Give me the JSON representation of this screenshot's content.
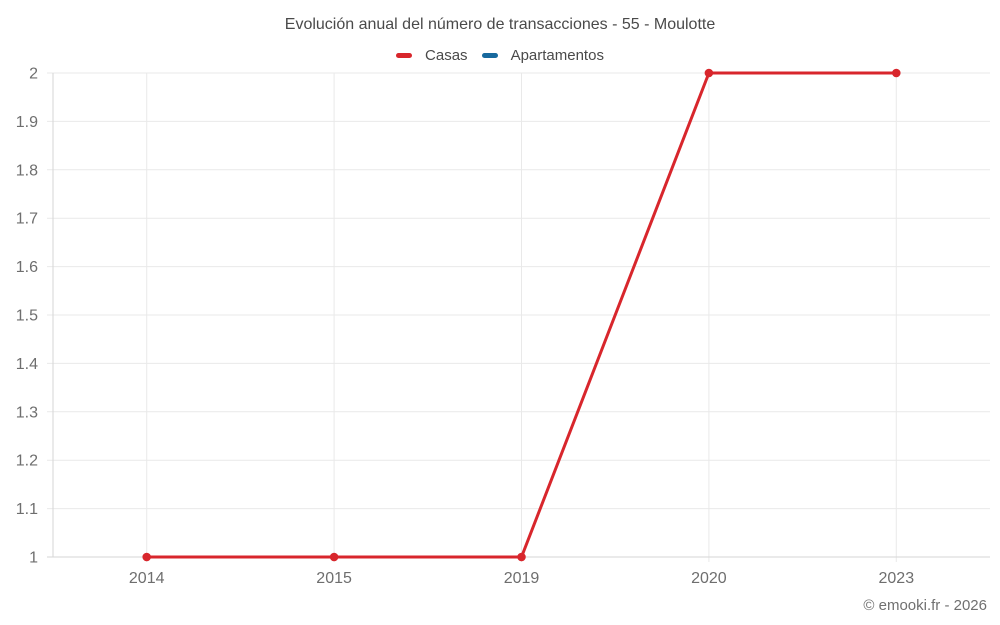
{
  "title": "Evolución anual del número de transacciones - 55 - Moulotte",
  "copyright": "© emooki.fr - 2026",
  "legend": [
    {
      "label": "Casas",
      "color": "#d8262c"
    },
    {
      "label": "Apartamentos",
      "color": "#17699e"
    }
  ],
  "chart_data": {
    "type": "line",
    "title": "Evolución anual del número de transacciones - 55 - Moulotte",
    "categories": [
      "2014",
      "2015",
      "2019",
      "2020",
      "2023"
    ],
    "series": [
      {
        "name": "Casas",
        "color": "#d8262c",
        "values": [
          1,
          1,
          1,
          2,
          2
        ]
      },
      {
        "name": "Apartamentos",
        "color": "#17699e",
        "values": []
      }
    ],
    "xlabel": "",
    "ylabel": "",
    "ylim": [
      1,
      2
    ],
    "yticks": [
      1,
      1.1,
      1.2,
      1.3,
      1.4,
      1.5,
      1.6,
      1.7,
      1.8,
      1.9,
      2
    ],
    "ytick_labels": [
      "1",
      "1.1",
      "1.2",
      "1.3",
      "1.4",
      "1.5",
      "1.6",
      "1.7",
      "1.8",
      "1.9",
      "2"
    ],
    "grid": true,
    "legend_position": "top",
    "marker": "circle",
    "colors": {
      "grid": "#e9e9e9",
      "axis": "#d6d6d6",
      "tick_text": "#6e6e6e",
      "title_text": "#4a4a4a"
    }
  }
}
